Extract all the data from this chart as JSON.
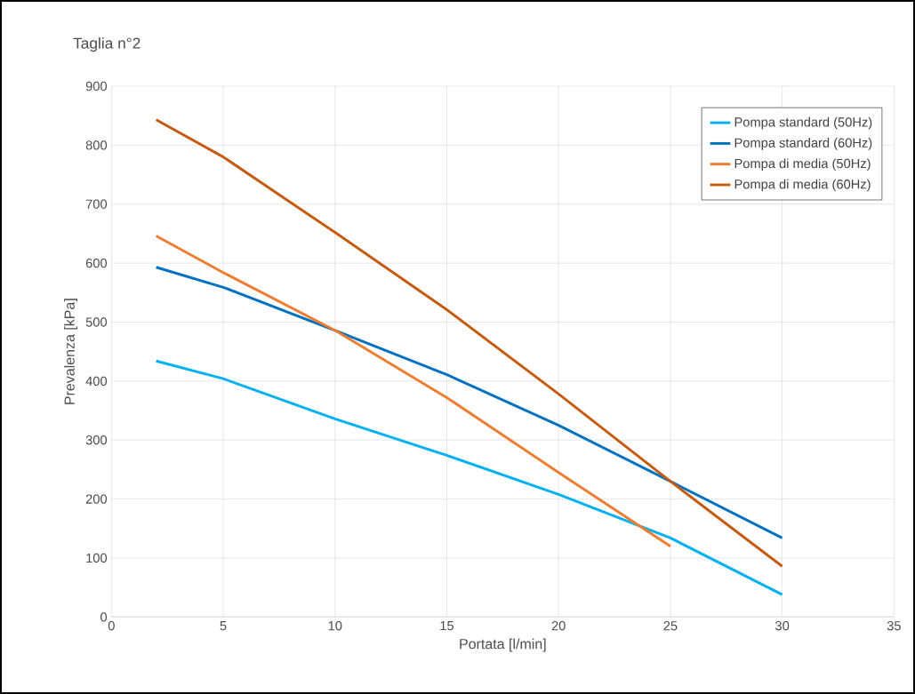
{
  "chart_data": {
    "type": "line",
    "title": "Taglia n°2",
    "xlabel": "Portata [l/min]",
    "ylabel": "Prevalenza [kPa]",
    "x": [
      2,
      5,
      10,
      15,
      20,
      25,
      30
    ],
    "series": [
      {
        "name": "Pompa standard (50Hz)",
        "color": "#00b0f0",
        "values": [
          434,
          404,
          336,
          274,
          208,
          134,
          38
        ]
      },
      {
        "name": "Pompa standard (60Hz)",
        "color": "#0070c0",
        "values": [
          593,
          559,
          486,
          411,
          325,
          230,
          134
        ]
      },
      {
        "name": "Pompa di media (50Hz)",
        "color": "#ed7d31",
        "values": [
          646,
          584,
          486,
          372,
          245,
          120,
          null
        ]
      },
      {
        "name": "Pompa di media (60Hz)",
        "color": "#c55a11",
        "values": [
          843,
          780,
          652,
          521,
          378,
          230,
          86
        ]
      }
    ],
    "xlim": [
      0,
      35
    ],
    "ylim": [
      0,
      900
    ],
    "xticks": [
      0,
      5,
      10,
      15,
      20,
      25,
      30,
      35
    ],
    "yticks": [
      0,
      100,
      200,
      300,
      400,
      500,
      600,
      700,
      800,
      900
    ],
    "grid": true,
    "legend": "top right",
    "marker": "none",
    "line_style": "solid"
  }
}
